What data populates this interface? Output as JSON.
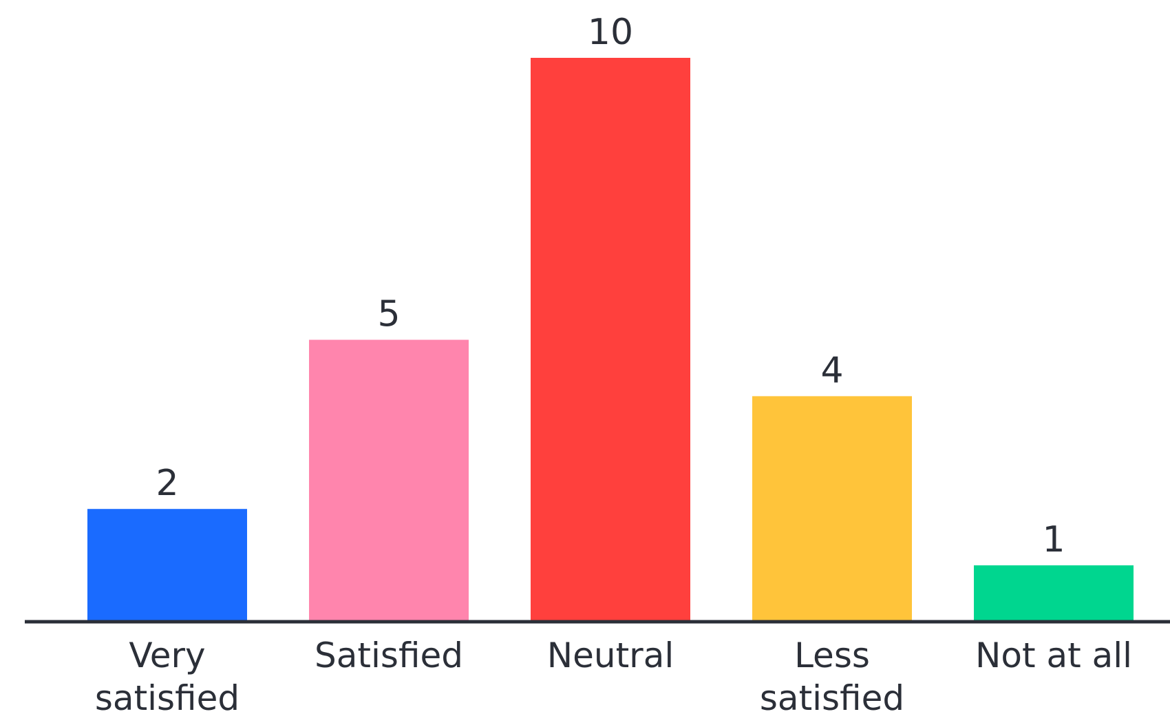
{
  "chart_data": {
    "type": "bar",
    "title": "",
    "xlabel": "",
    "ylabel": "",
    "categories": [
      [
        "Very",
        "satisfied"
      ],
      [
        "Satisfied"
      ],
      [
        "Neutral"
      ],
      [
        "Less",
        "satisfied"
      ],
      [
        "Not at all"
      ]
    ],
    "values": [
      2,
      5,
      10,
      4,
      1
    ],
    "colors": [
      "#1a6bff",
      "#ff85ad",
      "#ff403d",
      "#ffc43a",
      "#00d68f"
    ],
    "axis_color": "#2b2f38",
    "ylim": [
      0,
      10
    ],
    "grid": false,
    "legend": "none",
    "data_labels": true
  }
}
